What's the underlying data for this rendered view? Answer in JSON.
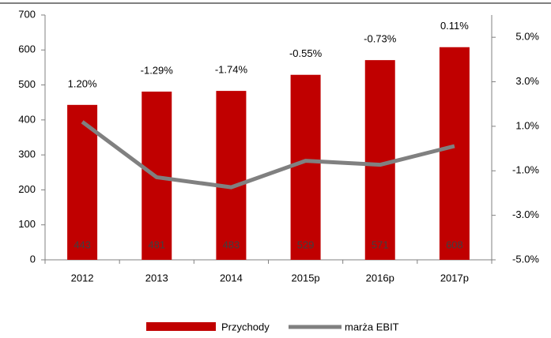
{
  "chart_data": {
    "type": "bar",
    "categories": [
      "2012",
      "2013",
      "2014",
      "2015p",
      "2016p",
      "2017p"
    ],
    "series": [
      {
        "name": "Przychody",
        "type": "bar",
        "color": "#c00000",
        "values": [
          443,
          481,
          483,
          529,
          571,
          608
        ]
      },
      {
        "name": "marża EBIT",
        "type": "line",
        "axis": "y2",
        "color": "#808080",
        "values": [
          1.2,
          -1.29,
          -1.74,
          -0.55,
          -0.73,
          0.11
        ],
        "value_labels": [
          "1.20%",
          "-1.29%",
          "-1.74%",
          "-0.55%",
          "-0.73%",
          "0.11%"
        ]
      }
    ],
    "ylim": [
      0,
      700
    ],
    "yticks": [
      0,
      100,
      200,
      300,
      400,
      500,
      600,
      700
    ],
    "y2lim": [
      -5,
      6
    ],
    "y2ticks": [
      {
        "value": -5,
        "label": "-5.0%"
      },
      {
        "value": -3,
        "label": "-3.0%"
      },
      {
        "value": -1,
        "label": "-1.0%"
      },
      {
        "value": 1,
        "label": "1.0%"
      },
      {
        "value": 3,
        "label": "3.0%"
      },
      {
        "value": 5,
        "label": "5.0%"
      }
    ],
    "legend": "bottom"
  }
}
